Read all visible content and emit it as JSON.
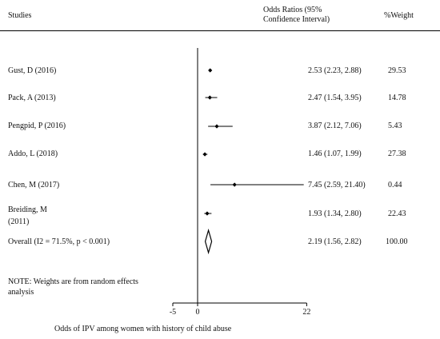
{
  "chart_data": {
    "type": "forest",
    "headers": {
      "studies": "Studies",
      "ci_line1": "Odds Ratios (95%",
      "ci_line2": "Confidence Interval)",
      "weight": "%Weight"
    },
    "studies": [
      {
        "label": "Gust,  D (2016)",
        "or": 2.53,
        "lo": 2.23,
        "hi": 2.88,
        "ci_text": "2.53 (2.23, 2.88)",
        "weight_text": "29.53"
      },
      {
        "label": "Pack,  A (2013)",
        "or": 2.47,
        "lo": 1.54,
        "hi": 3.95,
        "ci_text": "2.47 (1.54, 3.95)",
        "weight_text": "14.78"
      },
      {
        "label": "Pengpid, P (2016)",
        "or": 3.87,
        "lo": 2.12,
        "hi": 7.06,
        "ci_text": "3.87 (2.12, 7.06)",
        "weight_text": "5.43"
      },
      {
        "label": "Addo, L (2018)",
        "or": 1.46,
        "lo": 1.07,
        "hi": 1.99,
        "ci_text": "1.46 (1.07, 1.99)",
        "weight_text": "27.38"
      },
      {
        "label": "Chen, M (2017)",
        "or": 7.45,
        "lo": 2.59,
        "hi": 21.4,
        "ci_text": "7.45 (2.59, 21.40)",
        "weight_text": "0.44"
      },
      {
        "label_line1": "Breiding, M",
        "label_line2": "(2011)",
        "or": 1.93,
        "lo": 1.34,
        "hi": 2.8,
        "ci_text": "1.93 (1.34, 2.80)",
        "weight_text": "22.43"
      }
    ],
    "overall": {
      "label": "Overall  (I2 = 71.5%,  p < 0.001)",
      "or": 2.19,
      "lo": 1.56,
      "hi": 2.82,
      "ci_text": "2.19 (1.56, 2.82)",
      "weight_text": "100.00"
    },
    "note_line1": "NOTE: Weights are from random effects",
    "note_line2": "analysis",
    "x_ticks": [
      -5,
      0,
      22
    ],
    "x_tick_labels": [
      "-5",
      "0",
      "22"
    ],
    "xlim": [
      -5,
      22
    ],
    "xlabel": "Odds of IPV among women with history of child abuse",
    "colors": {
      "marks": "#000000",
      "text": "#111111"
    }
  }
}
